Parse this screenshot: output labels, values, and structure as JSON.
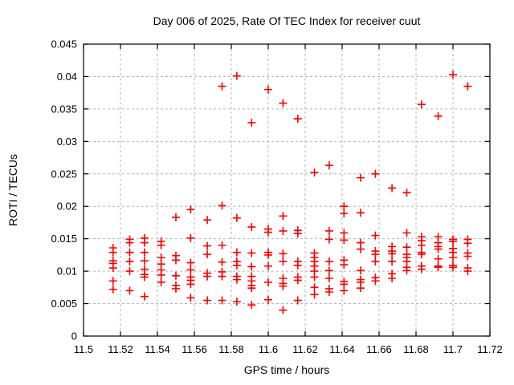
{
  "chart_data": {
    "type": "scatter",
    "title": "Day 006 of 2025, Rate Of TEC Index for receiver cuut",
    "xlabel": "GPS time / hours",
    "ylabel": "ROTI / TECUs",
    "xlim": [
      11.5,
      11.72
    ],
    "ylim": [
      0,
      0.045
    ],
    "xticks": [
      11.5,
      11.52,
      11.54,
      11.56,
      11.58,
      11.6,
      11.62,
      11.64,
      11.66,
      11.68,
      11.7,
      11.72
    ],
    "xtick_labels": [
      "11.5",
      "11.52",
      "11.54",
      "11.56",
      "11.58",
      "11.6",
      "11.62",
      "11.64",
      "11.66",
      "11.68",
      "11.7",
      "11.72"
    ],
    "yticks": [
      0,
      0.005,
      0.01,
      0.015,
      0.02,
      0.025,
      0.03,
      0.035,
      0.04,
      0.045
    ],
    "ytick_labels": [
      "0",
      "0.005",
      "0.01",
      "0.015",
      "0.02",
      "0.025",
      "0.03",
      "0.035",
      "0.04",
      "0.045"
    ],
    "grid": true,
    "legend": "none",
    "marker": "plus",
    "marker_color": "#ff0000",
    "grid_color": "#b5b5b5",
    "frame_color": "#000000",
    "series": [
      {
        "name": "ROTI",
        "points": [
          [
            11.516,
            0.0136
          ],
          [
            11.516,
            0.0129
          ],
          [
            11.516,
            0.0116
          ],
          [
            11.516,
            0.0112
          ],
          [
            11.516,
            0.0105
          ],
          [
            11.516,
            0.0085
          ],
          [
            11.516,
            0.0072
          ],
          [
            11.525,
            0.0149
          ],
          [
            11.525,
            0.0144
          ],
          [
            11.525,
            0.0129
          ],
          [
            11.525,
            0.0115
          ],
          [
            11.525,
            0.01
          ],
          [
            11.525,
            0.007
          ],
          [
            11.533,
            0.0151
          ],
          [
            11.533,
            0.0144
          ],
          [
            11.533,
            0.0129
          ],
          [
            11.533,
            0.0116
          ],
          [
            11.533,
            0.0103
          ],
          [
            11.533,
            0.0095
          ],
          [
            11.533,
            0.0091
          ],
          [
            11.533,
            0.0061
          ],
          [
            11.542,
            0.0146
          ],
          [
            11.542,
            0.014
          ],
          [
            11.542,
            0.0121
          ],
          [
            11.542,
            0.0111
          ],
          [
            11.542,
            0.0102
          ],
          [
            11.542,
            0.0094
          ],
          [
            11.542,
            0.0083
          ],
          [
            11.55,
            0.0183
          ],
          [
            11.55,
            0.0124
          ],
          [
            11.55,
            0.0117
          ],
          [
            11.55,
            0.0093
          ],
          [
            11.55,
            0.0078
          ],
          [
            11.55,
            0.0073
          ],
          [
            11.558,
            0.0195
          ],
          [
            11.558,
            0.0151
          ],
          [
            11.558,
            0.0113
          ],
          [
            11.558,
            0.0102
          ],
          [
            11.558,
            0.0091
          ],
          [
            11.558,
            0.0086
          ],
          [
            11.558,
            0.008
          ],
          [
            11.558,
            0.0059
          ],
          [
            11.567,
            0.0179
          ],
          [
            11.567,
            0.0139
          ],
          [
            11.567,
            0.0126
          ],
          [
            11.567,
            0.0097
          ],
          [
            11.567,
            0.0092
          ],
          [
            11.567,
            0.0055
          ],
          [
            11.575,
            0.0385
          ],
          [
            11.575,
            0.0201
          ],
          [
            11.575,
            0.014
          ],
          [
            11.575,
            0.0114
          ],
          [
            11.575,
            0.0099
          ],
          [
            11.575,
            0.0092
          ],
          [
            11.575,
            0.0055
          ],
          [
            11.583,
            0.0401
          ],
          [
            11.583,
            0.0182
          ],
          [
            11.583,
            0.0129
          ],
          [
            11.583,
            0.0115
          ],
          [
            11.583,
            0.0109
          ],
          [
            11.583,
            0.0092
          ],
          [
            11.583,
            0.0087
          ],
          [
            11.583,
            0.0053
          ],
          [
            11.591,
            0.0329
          ],
          [
            11.591,
            0.0168
          ],
          [
            11.591,
            0.0128
          ],
          [
            11.591,
            0.0107
          ],
          [
            11.591,
            0.0092
          ],
          [
            11.591,
            0.0085
          ],
          [
            11.591,
            0.0078
          ],
          [
            11.591,
            0.0074
          ],
          [
            11.591,
            0.0048
          ],
          [
            11.6,
            0.038
          ],
          [
            11.6,
            0.0165
          ],
          [
            11.6,
            0.016
          ],
          [
            11.6,
            0.0129
          ],
          [
            11.6,
            0.0125
          ],
          [
            11.6,
            0.0108
          ],
          [
            11.6,
            0.0083
          ],
          [
            11.6,
            0.0056
          ],
          [
            11.608,
            0.0359
          ],
          [
            11.608,
            0.0185
          ],
          [
            11.608,
            0.0162
          ],
          [
            11.608,
            0.0127
          ],
          [
            11.608,
            0.0115
          ],
          [
            11.608,
            0.0089
          ],
          [
            11.608,
            0.0081
          ],
          [
            11.608,
            0.0077
          ],
          [
            11.608,
            0.004
          ],
          [
            11.616,
            0.0335
          ],
          [
            11.616,
            0.0163
          ],
          [
            11.616,
            0.0158
          ],
          [
            11.616,
            0.0115
          ],
          [
            11.616,
            0.0109
          ],
          [
            11.616,
            0.0091
          ],
          [
            11.616,
            0.0086
          ],
          [
            11.616,
            0.0055
          ],
          [
            11.625,
            0.0252
          ],
          [
            11.625,
            0.0128
          ],
          [
            11.625,
            0.0121
          ],
          [
            11.625,
            0.0115
          ],
          [
            11.625,
            0.0108
          ],
          [
            11.625,
            0.01
          ],
          [
            11.625,
            0.0091
          ],
          [
            11.625,
            0.0075
          ],
          [
            11.625,
            0.0064
          ],
          [
            11.633,
            0.0263
          ],
          [
            11.633,
            0.0162
          ],
          [
            11.633,
            0.0149
          ],
          [
            11.633,
            0.0115
          ],
          [
            11.633,
            0.0101
          ],
          [
            11.633,
            0.0089
          ],
          [
            11.633,
            0.0073
          ],
          [
            11.633,
            0.0068
          ],
          [
            11.641,
            0.02
          ],
          [
            11.641,
            0.0189
          ],
          [
            11.641,
            0.0159
          ],
          [
            11.641,
            0.0148
          ],
          [
            11.641,
            0.0117
          ],
          [
            11.641,
            0.011
          ],
          [
            11.641,
            0.0084
          ],
          [
            11.641,
            0.008
          ],
          [
            11.641,
            0.007
          ],
          [
            11.65,
            0.0244
          ],
          [
            11.65,
            0.019
          ],
          [
            11.65,
            0.0144
          ],
          [
            11.65,
            0.0134
          ],
          [
            11.65,
            0.0101
          ],
          [
            11.65,
            0.0087
          ],
          [
            11.65,
            0.0083
          ],
          [
            11.65,
            0.0074
          ],
          [
            11.658,
            0.025
          ],
          [
            11.658,
            0.0155
          ],
          [
            11.658,
            0.0131
          ],
          [
            11.658,
            0.0126
          ],
          [
            11.658,
            0.0115
          ],
          [
            11.658,
            0.009
          ],
          [
            11.658,
            0.0085
          ],
          [
            11.667,
            0.0228
          ],
          [
            11.667,
            0.0138
          ],
          [
            11.667,
            0.0131
          ],
          [
            11.667,
            0.0127
          ],
          [
            11.667,
            0.0115
          ],
          [
            11.667,
            0.0096
          ],
          [
            11.667,
            0.0089
          ],
          [
            11.675,
            0.0221
          ],
          [
            11.675,
            0.0159
          ],
          [
            11.675,
            0.0137
          ],
          [
            11.675,
            0.0126
          ],
          [
            11.675,
            0.0121
          ],
          [
            11.675,
            0.0115
          ],
          [
            11.675,
            0.0106
          ],
          [
            11.675,
            0.0101
          ],
          [
            11.683,
            0.0357
          ],
          [
            11.683,
            0.0153
          ],
          [
            11.683,
            0.0147
          ],
          [
            11.683,
            0.014
          ],
          [
            11.683,
            0.0129
          ],
          [
            11.683,
            0.0126
          ],
          [
            11.683,
            0.0108
          ],
          [
            11.683,
            0.0103
          ],
          [
            11.692,
            0.0339
          ],
          [
            11.692,
            0.0153
          ],
          [
            11.692,
            0.0144
          ],
          [
            11.692,
            0.0138
          ],
          [
            11.692,
            0.0134
          ],
          [
            11.692,
            0.0119
          ],
          [
            11.692,
            0.0108
          ],
          [
            11.692,
            0.0106
          ],
          [
            11.7,
            0.0403
          ],
          [
            11.7,
            0.0149
          ],
          [
            11.7,
            0.0146
          ],
          [
            11.7,
            0.0135
          ],
          [
            11.7,
            0.0129
          ],
          [
            11.7,
            0.0121
          ],
          [
            11.7,
            0.0109
          ],
          [
            11.7,
            0.0106
          ],
          [
            11.708,
            0.0385
          ],
          [
            11.708,
            0.0149
          ],
          [
            11.708,
            0.0143
          ],
          [
            11.708,
            0.0128
          ],
          [
            11.708,
            0.0123
          ],
          [
            11.708,
            0.0105
          ],
          [
            11.708,
            0.01
          ]
        ]
      }
    ]
  }
}
